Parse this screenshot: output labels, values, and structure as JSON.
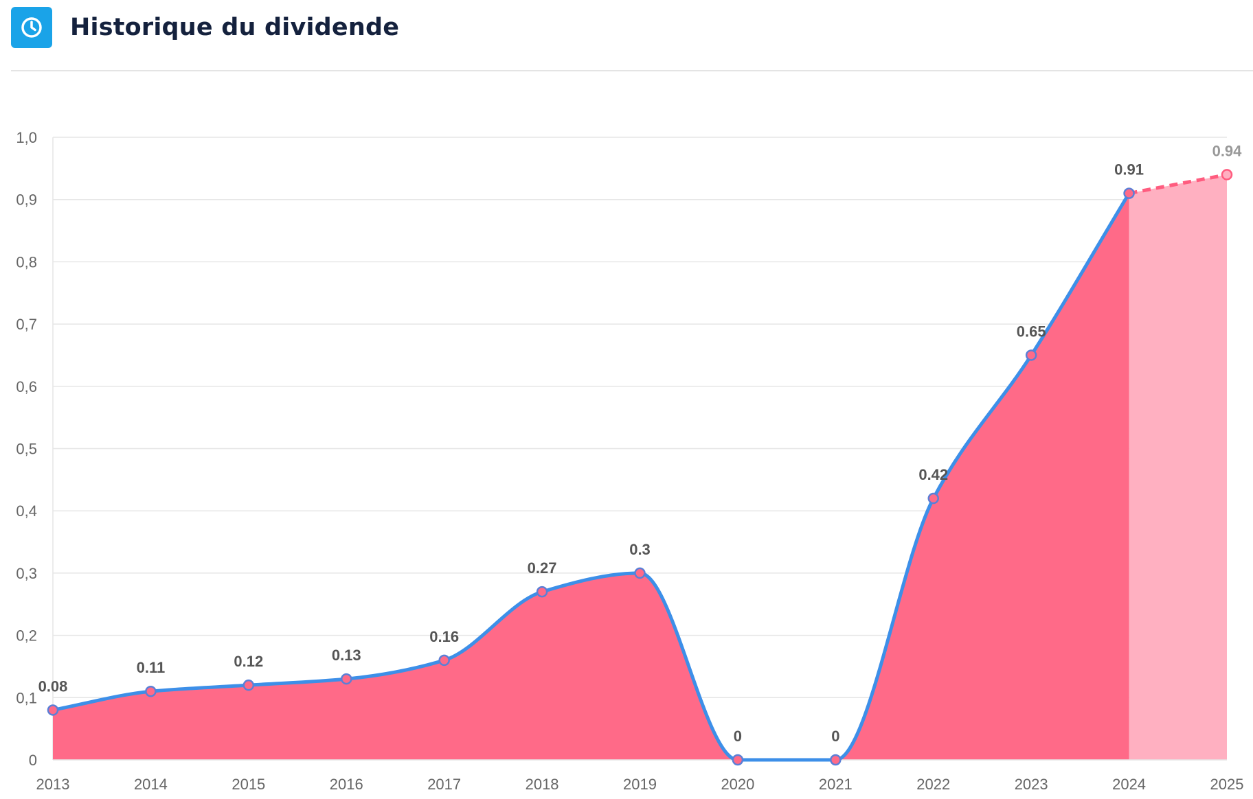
{
  "header": {
    "title": "Historique du dividende",
    "icon": "clock-icon",
    "icon_bg": "#1aa3e8"
  },
  "chart_data": {
    "type": "area",
    "title": "Historique du dividende",
    "xlabel": "",
    "ylabel": "",
    "categories": [
      "2013",
      "2014",
      "2015",
      "2016",
      "2017",
      "2018",
      "2019",
      "2020",
      "2021",
      "2022",
      "2023",
      "2024",
      "2025"
    ],
    "values": [
      0.08,
      0.11,
      0.12,
      0.13,
      0.16,
      0.27,
      0.3,
      0,
      0,
      0.42,
      0.65,
      0.91,
      0.94
    ],
    "data_labels": [
      "0.08",
      "0.11",
      "0.12",
      "0.13",
      "0.16",
      "0.27",
      "0.3",
      "0",
      "0",
      "0.42",
      "0.65",
      "0.91",
      "0.94"
    ],
    "forecast_from_index": 11,
    "ylim": [
      0,
      1.0
    ],
    "y_ticks": [
      "0",
      "0,1",
      "0,2",
      "0,3",
      "0,4",
      "0,5",
      "0,6",
      "0,7",
      "0,8",
      "0,9",
      "1,0"
    ],
    "grid": true,
    "legend": "none",
    "colors": {
      "fill": "#ff6a88",
      "fill_forecast": "#ffb0c1",
      "line": "#3d8fe8",
      "line_forecast": "#ff5c7f",
      "marker": "#ff6a88",
      "label": "#555555",
      "label_forecast": "#999999"
    }
  }
}
